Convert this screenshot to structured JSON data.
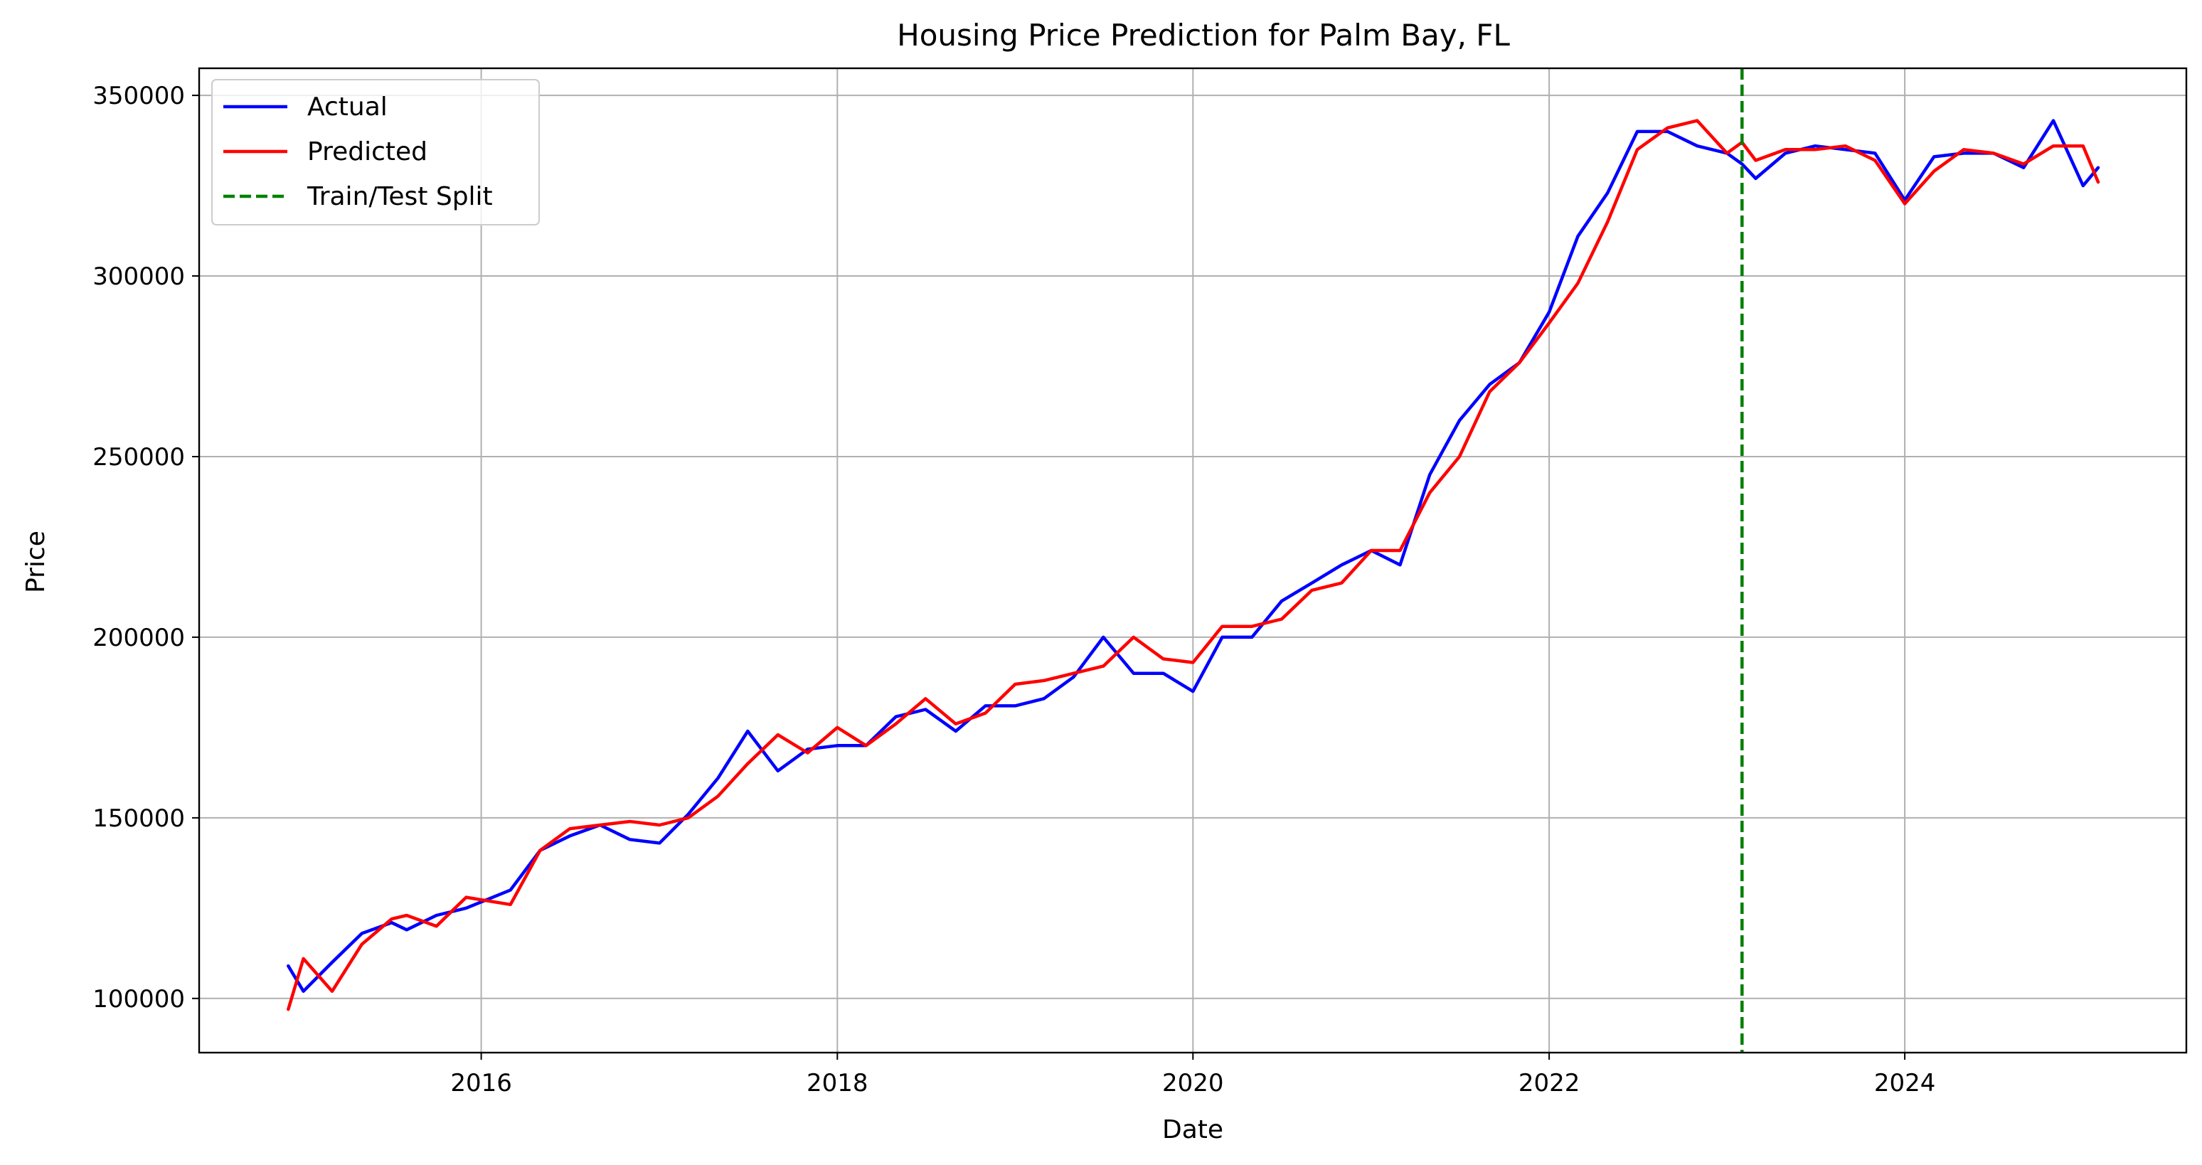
{
  "chart_data": {
    "type": "line",
    "title": "Housing Price Prediction for Palm Bay, FL",
    "xlabel": "Date",
    "ylabel": "Price",
    "xlim": [
      "2014-06-01",
      "2025-08-01"
    ],
    "ylim": [
      85000,
      357500
    ],
    "x_ticks": [
      {
        "date": "2016-01-01",
        "label": "2016"
      },
      {
        "date": "2018-01-01",
        "label": "2018"
      },
      {
        "date": "2020-01-01",
        "label": "2020"
      },
      {
        "date": "2022-01-01",
        "label": "2022"
      },
      {
        "date": "2024-01-01",
        "label": "2024"
      }
    ],
    "y_ticks": [
      {
        "value": 100000,
        "label": "100000"
      },
      {
        "value": 150000,
        "label": "150000"
      },
      {
        "value": 200000,
        "label": "200000"
      },
      {
        "value": 250000,
        "label": "250000"
      },
      {
        "value": 300000,
        "label": "300000"
      },
      {
        "value": 350000,
        "label": "350000"
      }
    ],
    "grid": true,
    "legend_position": "top-left",
    "x": [
      "2014-12-01",
      "2015-01-01",
      "2015-03-01",
      "2015-05-01",
      "2015-07-01",
      "2015-08-01",
      "2015-10-01",
      "2015-12-01",
      "2016-03-01",
      "2016-05-01",
      "2016-07-01",
      "2016-09-01",
      "2016-11-01",
      "2017-01-01",
      "2017-03-01",
      "2017-05-01",
      "2017-07-01",
      "2017-09-01",
      "2017-11-01",
      "2018-01-01",
      "2018-03-01",
      "2018-05-01",
      "2018-07-01",
      "2018-09-01",
      "2018-11-01",
      "2019-01-01",
      "2019-03-01",
      "2019-05-01",
      "2019-07-01",
      "2019-09-01",
      "2019-11-01",
      "2020-01-01",
      "2020-03-01",
      "2020-05-01",
      "2020-07-01",
      "2020-09-01",
      "2020-11-01",
      "2021-01-01",
      "2021-03-01",
      "2021-05-01",
      "2021-07-01",
      "2021-09-01",
      "2021-11-01",
      "2022-01-01",
      "2022-03-01",
      "2022-05-01",
      "2022-07-01",
      "2022-09-01",
      "2022-11-01",
      "2023-01-01",
      "2023-02-01",
      "2023-03-01",
      "2023-05-01",
      "2023-07-01",
      "2023-09-01",
      "2023-11-01",
      "2024-01-01",
      "2024-03-01",
      "2024-05-01",
      "2024-07-01",
      "2024-09-01",
      "2024-11-01",
      "2025-01-01",
      "2025-02-01"
    ],
    "series": [
      {
        "name": "Actual",
        "color": "#0000ff",
        "values": [
          109000,
          102000,
          110000,
          118000,
          121000,
          119000,
          123000,
          125000,
          130000,
          141000,
          145000,
          148000,
          144000,
          143000,
          151000,
          161000,
          174000,
          163000,
          169000,
          170000,
          170000,
          178000,
          180000,
          174000,
          181000,
          181000,
          183000,
          189000,
          200000,
          190000,
          190000,
          185000,
          200000,
          200000,
          210000,
          215000,
          220000,
          224000,
          220000,
          245000,
          260000,
          270000,
          276000,
          290000,
          311000,
          323000,
          340000,
          340000,
          336000,
          334000,
          331000,
          327000,
          334000,
          336000,
          335000,
          334000,
          321000,
          333000,
          334000,
          334000,
          330000,
          343000,
          325000,
          330000
        ]
      },
      {
        "name": "Predicted",
        "color": "#ff0000",
        "values": [
          97000,
          111000,
          102000,
          115000,
          122000,
          123000,
          120000,
          128000,
          126000,
          141000,
          147000,
          148000,
          149000,
          148000,
          150000,
          156000,
          165000,
          173000,
          168000,
          175000,
          170000,
          176000,
          183000,
          176000,
          179000,
          187000,
          188000,
          190000,
          192000,
          200000,
          194000,
          193000,
          203000,
          203000,
          205000,
          213000,
          215000,
          224000,
          224000,
          240000,
          250000,
          268000,
          276000,
          287000,
          298000,
          315000,
          335000,
          341000,
          343000,
          334000,
          337000,
          332000,
          335000,
          335000,
          336000,
          332000,
          320000,
          329000,
          335000,
          334000,
          331000,
          336000,
          336000,
          326000
        ]
      }
    ],
    "vertical_line": {
      "name": "Train/Test Split",
      "date": "2023-02-01",
      "color": "#008000"
    }
  }
}
